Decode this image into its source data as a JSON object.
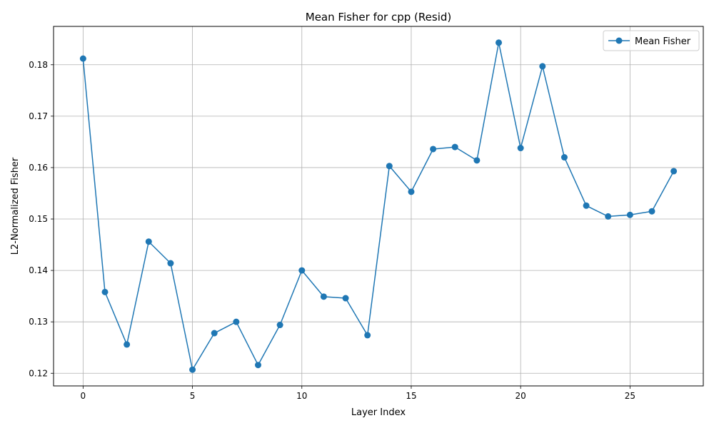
{
  "chart_data": {
    "type": "line",
    "title": "Mean Fisher for cpp (Resid)",
    "xlabel": "Layer Index",
    "ylabel": "L2-Normalized Fisher",
    "x": [
      0,
      1,
      2,
      3,
      4,
      5,
      6,
      7,
      8,
      9,
      10,
      11,
      12,
      13,
      14,
      15,
      16,
      17,
      18,
      19,
      20,
      21,
      22,
      23,
      24,
      25,
      26,
      27
    ],
    "series": [
      {
        "name": "Mean Fisher",
        "color": "#1f77b4",
        "marker": "circle",
        "values": [
          0.1812,
          0.1358,
          0.1256,
          0.1456,
          0.1414,
          0.1207,
          0.1278,
          0.13,
          0.1216,
          0.1294,
          0.14,
          0.1349,
          0.1346,
          0.1274,
          0.1603,
          0.1553,
          0.1636,
          0.164,
          0.1614,
          0.1843,
          0.1638,
          0.1797,
          0.162,
          0.1526,
          0.1505,
          0.1508,
          0.1515,
          0.1593
        ]
      }
    ],
    "xlim": [
      -1.35,
      28.35
    ],
    "ylim": [
      0.11754,
      0.18746
    ],
    "xticks": [
      0,
      5,
      10,
      15,
      20,
      25
    ],
    "xtick_labels": [
      "0",
      "5",
      "10",
      "15",
      "20",
      "25"
    ],
    "yticks": [
      0.12,
      0.13,
      0.14,
      0.15,
      0.16,
      0.17,
      0.18
    ],
    "ytick_labels": [
      "0.12",
      "0.13",
      "0.14",
      "0.15",
      "0.16",
      "0.17",
      "0.18"
    ],
    "grid": true,
    "legend_position": "top-right"
  }
}
